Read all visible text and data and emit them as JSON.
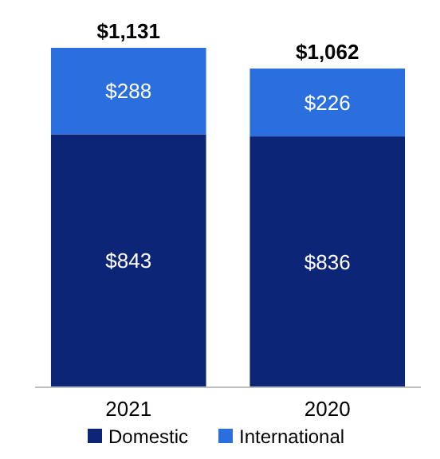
{
  "chart_data": {
    "type": "bar",
    "stacked": true,
    "categories": [
      "2021",
      "2020"
    ],
    "series": [
      {
        "name": "Domestic",
        "color": "#0c2577",
        "values": [
          843,
          836
        ],
        "value_labels": [
          "$843",
          "$836"
        ]
      },
      {
        "name": "International",
        "color": "#2b6fdf",
        "values": [
          288,
          226
        ],
        "value_labels": [
          "$288",
          "$226"
        ]
      }
    ],
    "totals": [
      "$1,131",
      "$1,062"
    ],
    "legend": "bottom"
  }
}
